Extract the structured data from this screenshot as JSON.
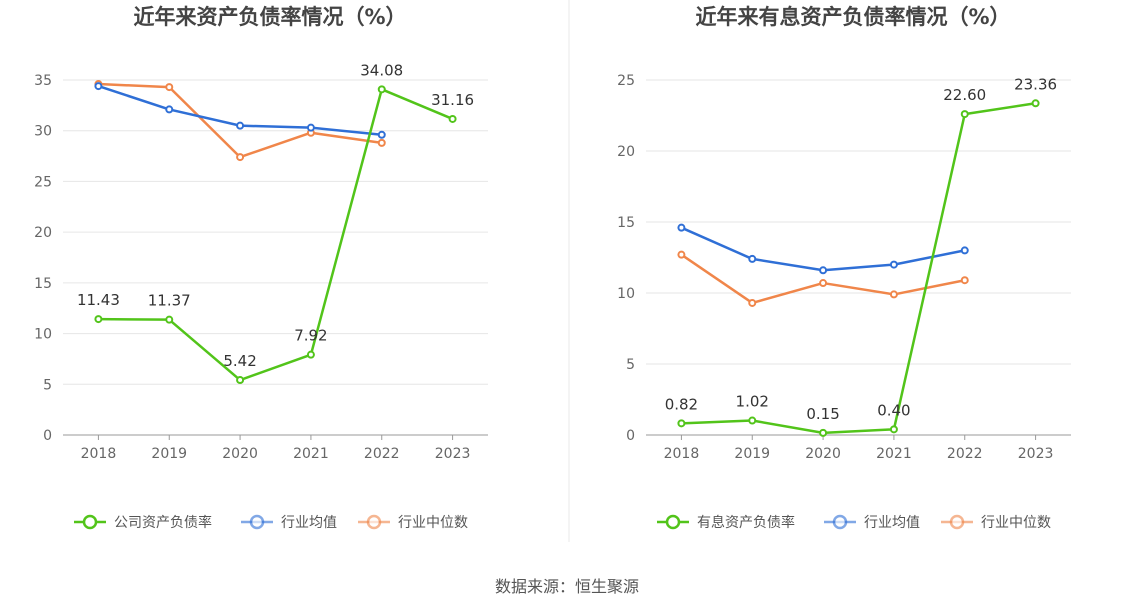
{
  "source_text": "数据来源：恒生聚源",
  "chart_data": [
    {
      "type": "line",
      "title": "近年来资产负债率情况（%）",
      "x": [
        "2018",
        "2019",
        "2020",
        "2021",
        "2022",
        "2023"
      ],
      "ylim": [
        0,
        35
      ],
      "yticks": [
        0,
        5,
        10,
        15,
        20,
        25,
        30,
        35
      ],
      "grid": true,
      "legend_position": "bottom",
      "series": [
        {
          "name": "公司资产负债率",
          "color": "#52c41a",
          "labels": true,
          "values": [
            11.43,
            11.37,
            5.42,
            7.92,
            34.08,
            31.16
          ],
          "value_labels": [
            "11.43",
            "11.37",
            "5.42",
            "7.92",
            "34.08",
            "31.16"
          ]
        },
        {
          "name": "行业均值",
          "color": "#2f6fd6",
          "labels": false,
          "values": [
            34.4,
            32.1,
            30.5,
            30.3,
            29.6,
            null
          ]
        },
        {
          "name": "行业中位数",
          "color": "#f0864a",
          "labels": false,
          "values": [
            34.6,
            34.3,
            27.4,
            29.8,
            28.8,
            null
          ]
        }
      ]
    },
    {
      "type": "line",
      "title": "近年来有息资产负债率情况（%）",
      "x": [
        "2018",
        "2019",
        "2020",
        "2021",
        "2022",
        "2023"
      ],
      "ylim": [
        0,
        25
      ],
      "yticks": [
        0,
        5,
        10,
        15,
        20,
        25
      ],
      "grid": true,
      "legend_position": "bottom",
      "series": [
        {
          "name": "有息资产负债率",
          "color": "#52c41a",
          "labels": true,
          "values": [
            0.82,
            1.02,
            0.15,
            0.4,
            22.6,
            23.36
          ],
          "value_labels": [
            "0.82",
            "1.02",
            "0.15",
            "0.40",
            "22.60",
            "23.36"
          ]
        },
        {
          "name": "行业均值",
          "color": "#2f6fd6",
          "labels": false,
          "values": [
            14.6,
            12.4,
            11.6,
            12.0,
            13.0,
            null
          ]
        },
        {
          "name": "行业中位数",
          "color": "#f0864a",
          "labels": false,
          "values": [
            12.7,
            9.3,
            10.7,
            9.9,
            10.9,
            null
          ]
        }
      ]
    }
  ]
}
